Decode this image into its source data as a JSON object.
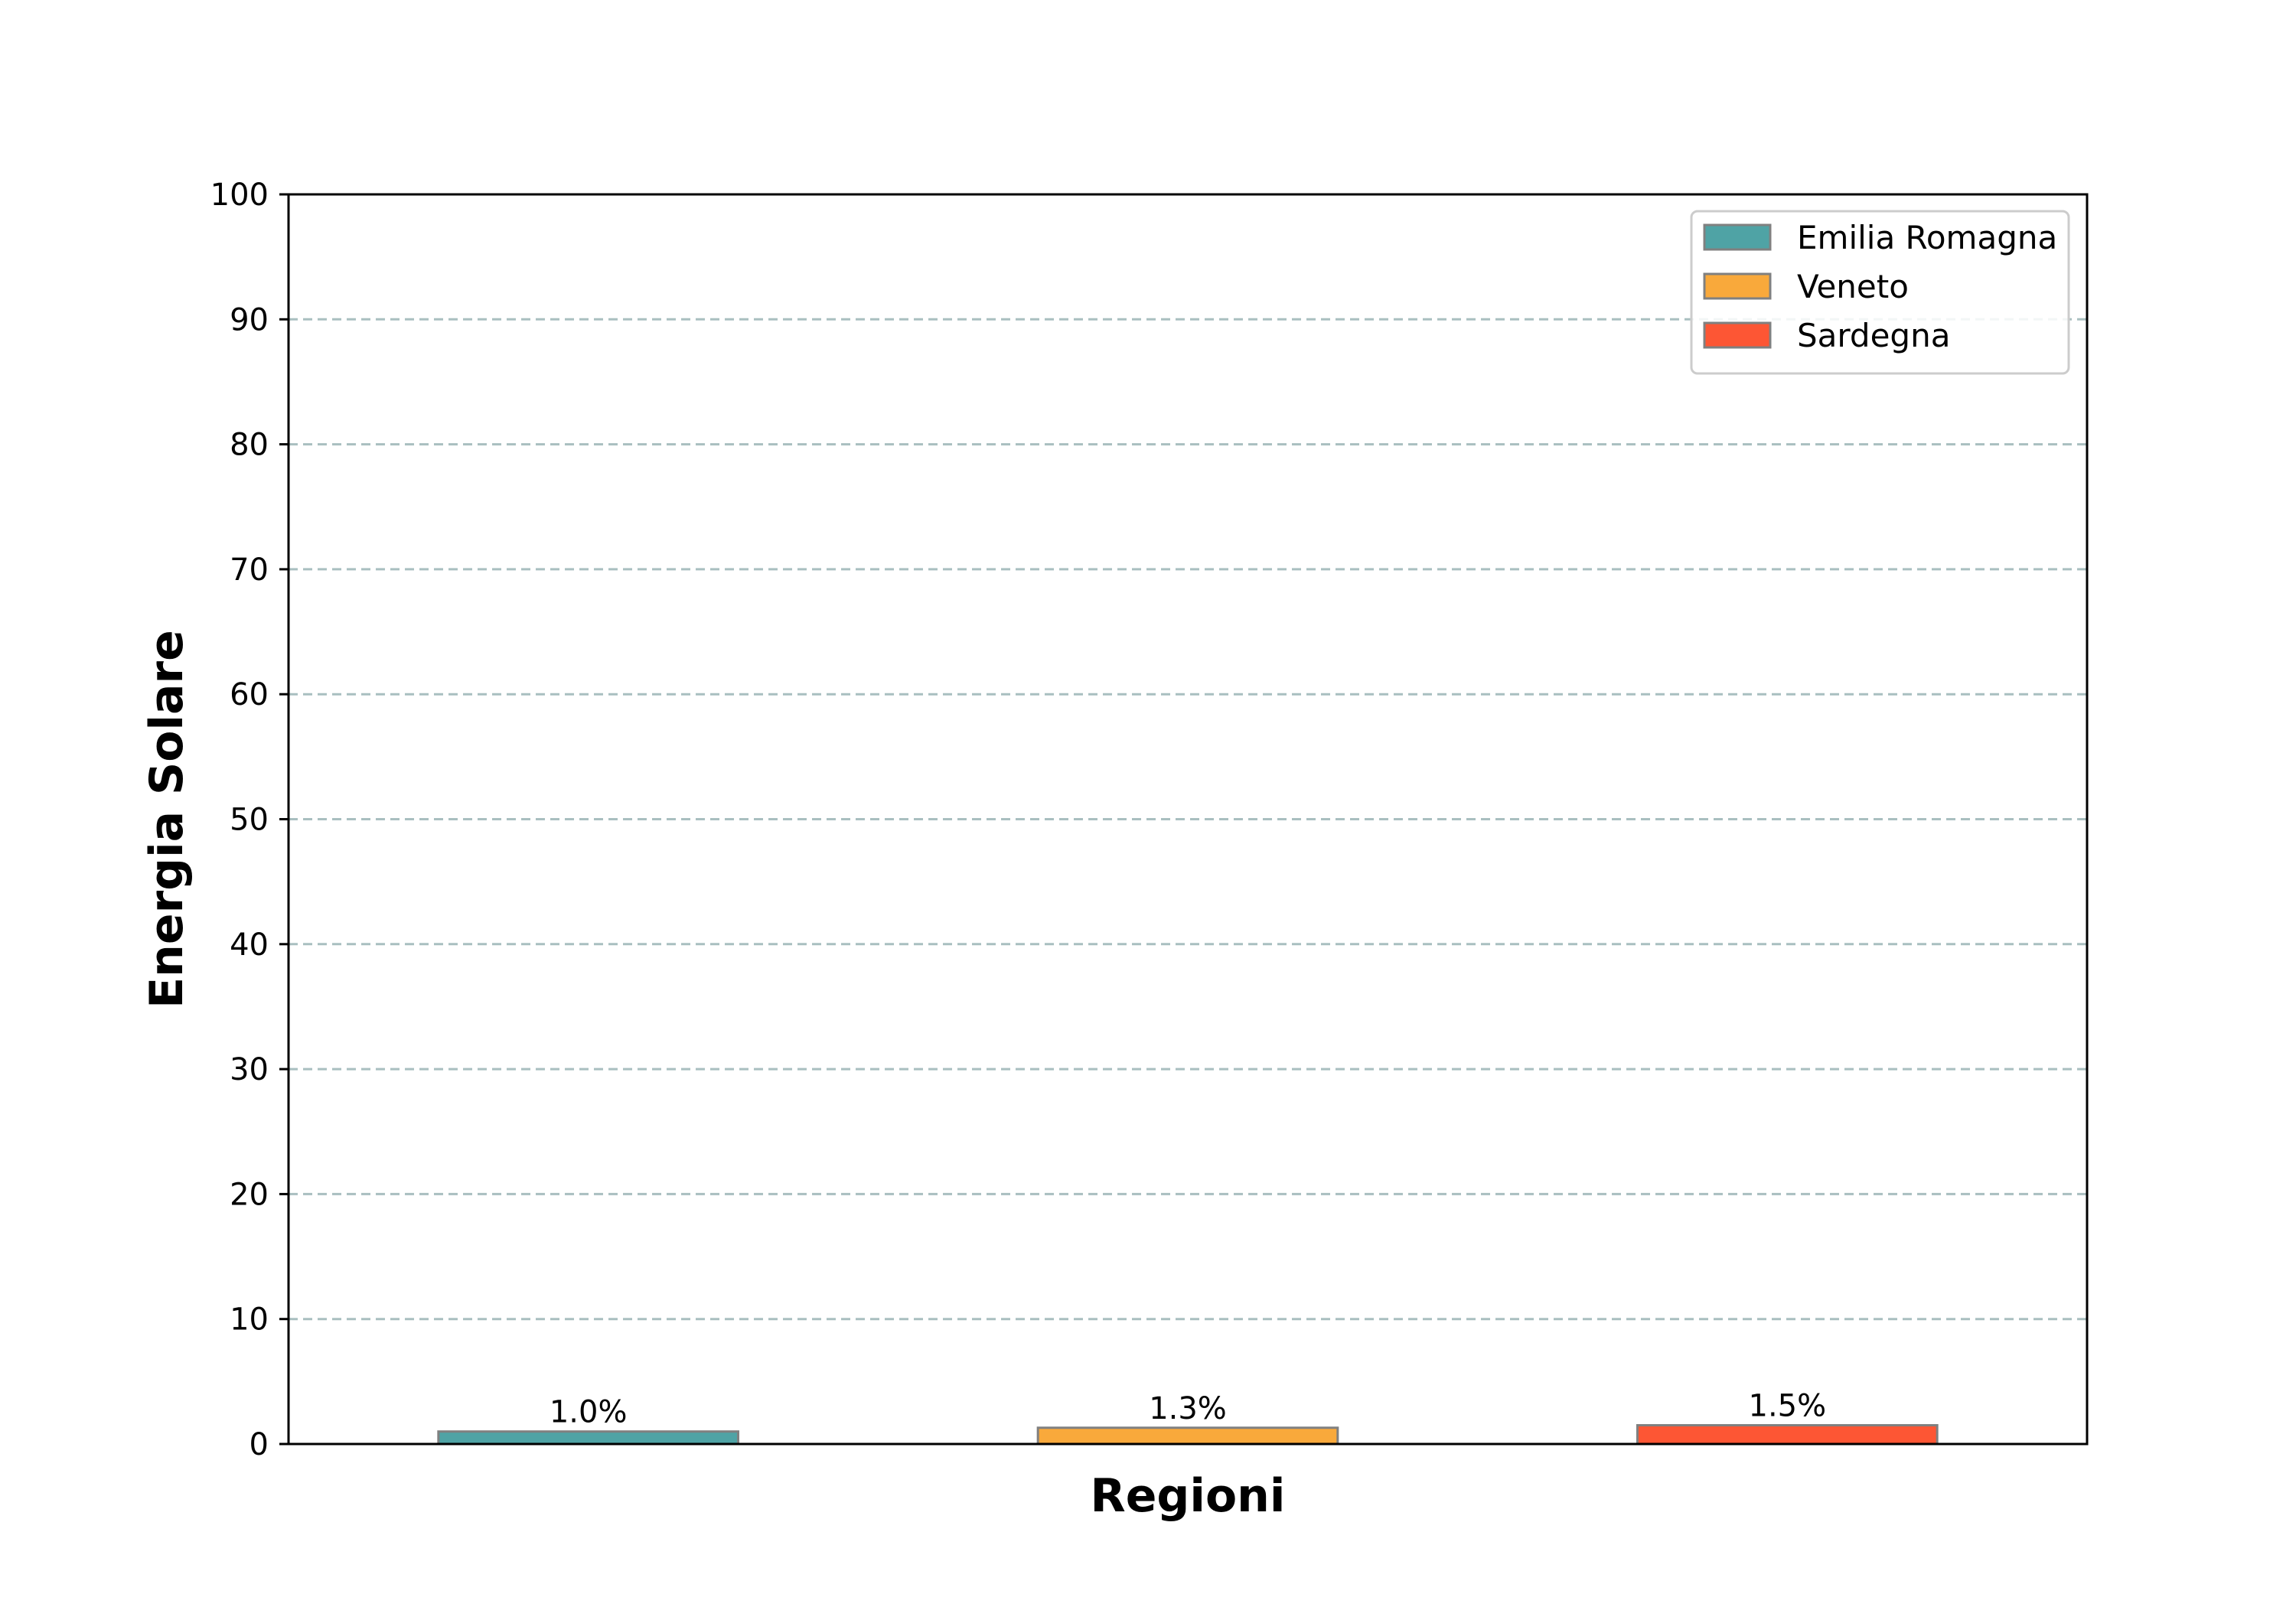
{
  "chart_data": {
    "type": "bar",
    "categories": [
      "Emilia Romagna",
      "Veneto",
      "Sardegna"
    ],
    "values": [
      1.0,
      1.3,
      1.5
    ],
    "data_labels": [
      "1.0%",
      "1.3%",
      "1.5%"
    ],
    "colors": [
      "#4fa3a5",
      "#f9a93b",
      "#fd5634"
    ],
    "bar_edge_color": "#808080",
    "title": "",
    "xlabel": "Regioni",
    "ylabel": "Energia Solare",
    "ylim": [
      0,
      100
    ],
    "yticks": [
      0,
      10,
      20,
      30,
      40,
      50,
      60,
      70,
      80,
      90,
      100
    ],
    "xticks_visible": false,
    "grid": {
      "axis": "y",
      "style": "dashed",
      "color": "#a9bfc0"
    },
    "legend": {
      "placement": "top-right",
      "entries": [
        "Emilia Romagna",
        "Veneto",
        "Sardegna"
      ]
    }
  }
}
